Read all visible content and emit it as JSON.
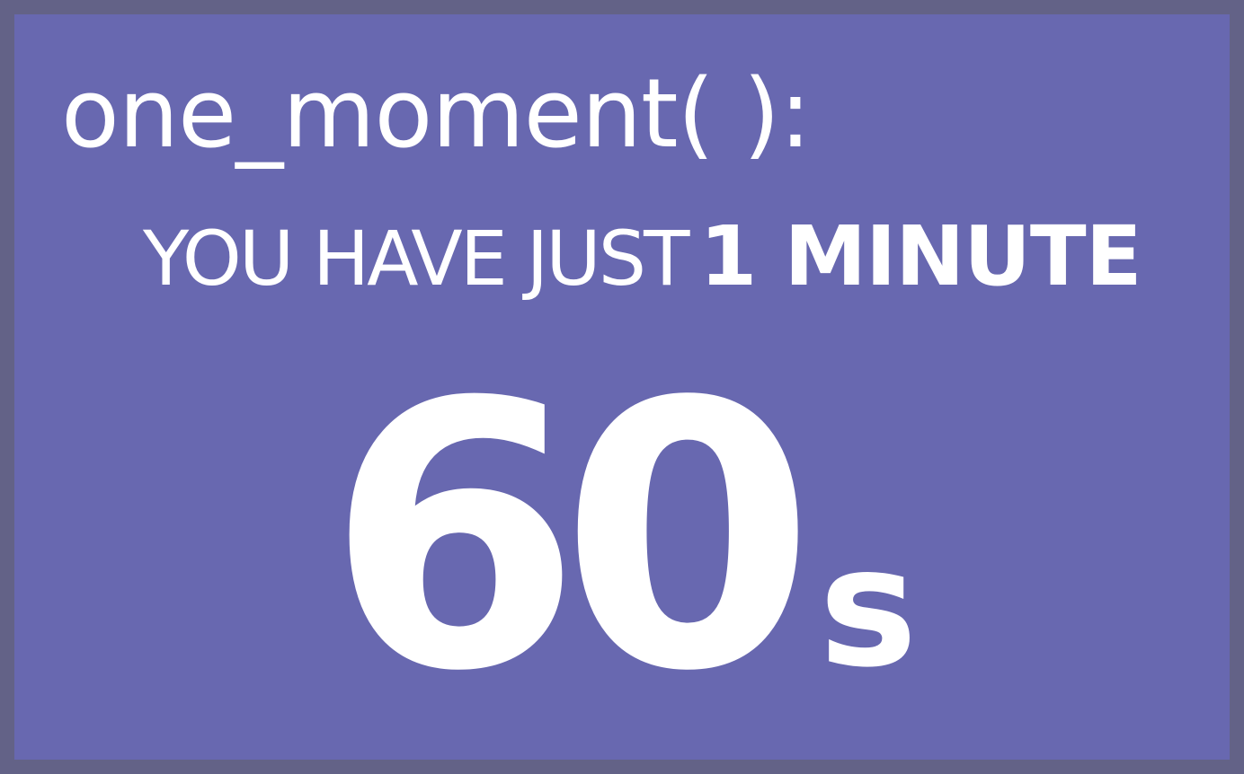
{
  "heading": "one_moment( ):",
  "message": {
    "prefix": "YOU HAVE JUST",
    "emphasis": "1 MINUTE"
  },
  "timer": {
    "value": "60",
    "unit": "s"
  },
  "colors": {
    "background": "#6868b0",
    "border": "#636287",
    "text": "#ffffff"
  }
}
